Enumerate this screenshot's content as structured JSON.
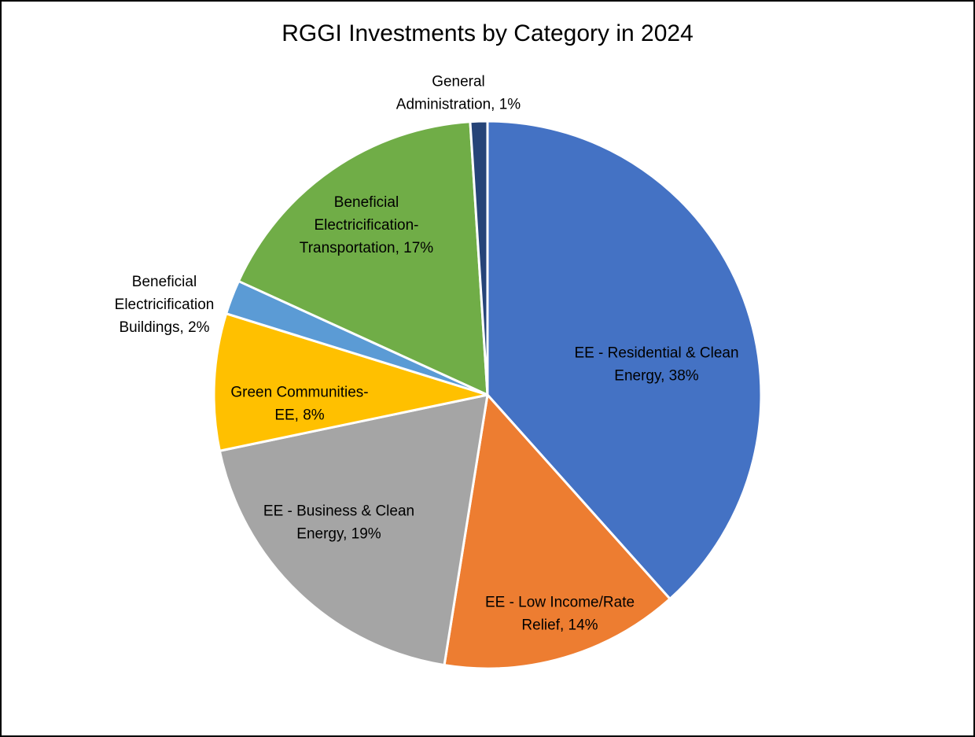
{
  "chart_data": {
    "type": "pie",
    "title": "RGGI Investments by Category in 2024",
    "slices": [
      {
        "label": "EE - Residential & Clean Energy",
        "label_lines": [
          "EE - Residential & Clean",
          "Energy, 38%"
        ],
        "value": 38,
        "color": "#4472C4"
      },
      {
        "label": "EE - Low Income/Rate Relief",
        "label_lines": [
          "EE - Low Income/Rate",
          "Relief, 14%"
        ],
        "value": 14,
        "color": "#ED7D31"
      },
      {
        "label": "EE - Business & Clean Energy",
        "label_lines": [
          "EE - Business & Clean",
          "Energy, 19%"
        ],
        "value": 19,
        "color": "#A5A5A5"
      },
      {
        "label": "Green Communities-EE",
        "label_lines": [
          "Green Communities-",
          "EE, 8%"
        ],
        "value": 8,
        "color": "#FFC000"
      },
      {
        "label": "Beneficial Electricification Buildings",
        "label_lines": [
          "Beneficial",
          "Electricification",
          "Buildings, 2%"
        ],
        "value": 2,
        "color": "#5B9BD5"
      },
      {
        "label": "Beneficial Electricification-Transportation",
        "label_lines": [
          "Beneficial",
          "Electricification-",
          "Transportation, 17%"
        ],
        "value": 17,
        "color": "#70AD47"
      },
      {
        "label": "General Administration",
        "label_lines": [
          "General",
          "Administration, 1%"
        ],
        "value": 1,
        "color": "#264478"
      }
    ]
  }
}
